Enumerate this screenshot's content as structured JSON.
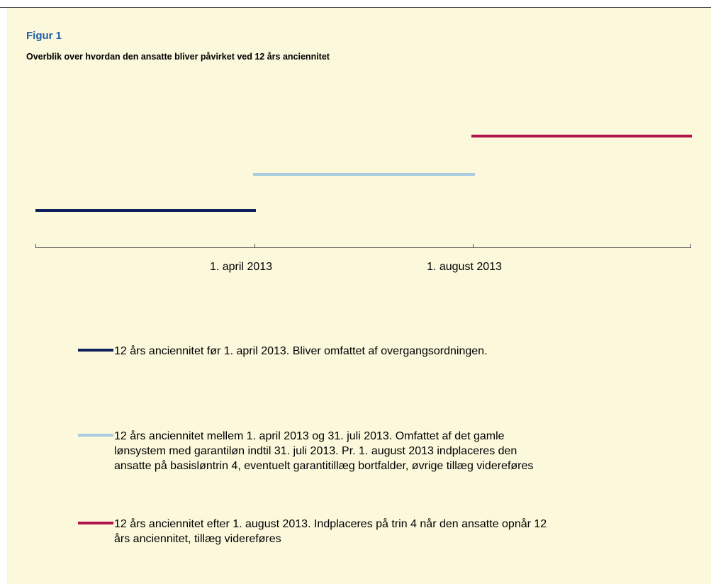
{
  "header": {
    "title": "Figur 1",
    "subtitle": "Overblik over hvordan den ansatte bliver påvirket ved 12 års anciennitet"
  },
  "axis": {
    "labels": [
      "1. april 2013",
      "1. august 2013"
    ]
  },
  "legend": [
    {
      "color": "#0e1f5b",
      "lines": [
        "12 års anciennitet før 1. april 2013. Bliver omfattet af overgangsordningen."
      ]
    },
    {
      "color": "#a9cbe0",
      "lines": [
        "12 års anciennitet mellem 1. april 2013 og 31. juli 2013. Omfattet af det gamle",
        "lønsystem med garantiløn indtil 31. juli 2013. Pr. 1. august 2013 indplaceres den",
        "ansatte på basisløntrin 4, eventuelt garantitillæg bortfalder, øvrige tillæg videreføres"
      ]
    },
    {
      "color": "#b2154b",
      "lines": [
        "12 års anciennitet efter 1. august 2013. Indplaceres på trin 4 når den ansatte opnår 12",
        "års anciennitet, tillæg videreføres"
      ]
    }
  ]
}
